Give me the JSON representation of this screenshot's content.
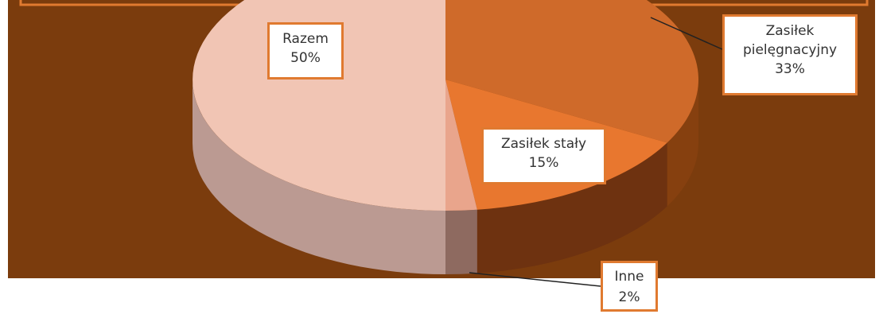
{
  "chart_data": {
    "type": "pie",
    "categories": [
      "Zasiłek pielęgnacyjny",
      "Zasiłek stały",
      "Inne",
      "Razem"
    ],
    "values": [
      33,
      15,
      2,
      50
    ],
    "value_labels": [
      "33%",
      "15%",
      "2%",
      "50%"
    ],
    "colors": [
      "#cf6a2a",
      "#e8772f",
      "#e9a58c",
      "#f1c5b4"
    ],
    "side_colors": [
      "#86400f",
      "#6e3210",
      "#8e6a60",
      "#bb9a92"
    ]
  }
}
